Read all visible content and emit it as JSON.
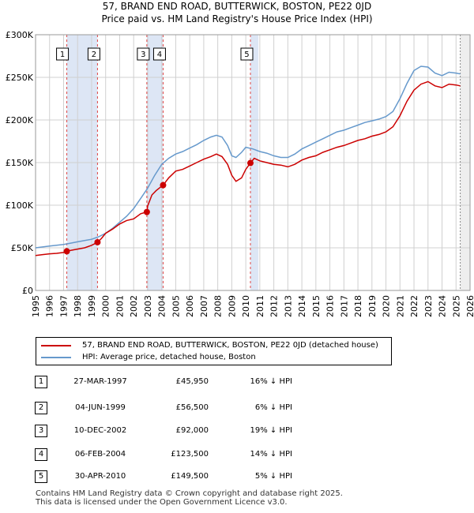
{
  "title_line1": "57, BRAND END ROAD, BUTTERWICK, BOSTON, PE22 0JD",
  "title_line2": "Price paid vs. HM Land Registry's House Price Index (HPI)",
  "colors": {
    "red": "#cc0000",
    "blue": "#6699cc",
    "shade": "#dde6f5",
    "vline": "#dd4444",
    "grid": "#d0d0d0"
  },
  "chart_data": {
    "type": "line",
    "title": "Price paid vs. HM Land Registry's House Price Index (HPI)",
    "xlabel": "",
    "ylabel": "",
    "xlim": [
      1995,
      2026
    ],
    "ylim": [
      0,
      300000
    ],
    "yticks": [
      0,
      50000,
      100000,
      150000,
      200000,
      250000,
      300000
    ],
    "ytick_labels": [
      "£0",
      "£50K",
      "£100K",
      "£150K",
      "£200K",
      "£250K",
      "£300K"
    ],
    "xtick_labels": [
      "1995",
      "1996",
      "1997",
      "1998",
      "1999",
      "2000",
      "2001",
      "2002",
      "2003",
      "2004",
      "2005",
      "2006",
      "2007",
      "2008",
      "2009",
      "2010",
      "2011",
      "2012",
      "2013",
      "2014",
      "2015",
      "2016",
      "2017",
      "2018",
      "2019",
      "2020",
      "2021",
      "2022",
      "2023",
      "2024",
      "2025",
      "2026"
    ],
    "grid": true,
    "shaded_spans": [
      [
        1997.23,
        1999.42
      ],
      [
        2002.94,
        2004.1
      ],
      [
        2010.33,
        2010.9
      ]
    ],
    "forecast_start": 2025.3,
    "series": [
      {
        "name": "57, BRAND END ROAD, BUTTERWICK, BOSTON, PE22 0JD (detached house)",
        "color": "#cc0000",
        "x": [
          1995.0,
          1995.5,
          1996.0,
          1996.5,
          1997.0,
          1997.23,
          1997.5,
          1998.0,
          1998.5,
          1999.0,
          1999.42,
          1999.7,
          2000.0,
          2000.5,
          2001.0,
          2001.5,
          2002.0,
          2002.5,
          2002.94,
          2003.0,
          2003.3,
          2003.6,
          2003.9,
          2004.1,
          2004.5,
          2005.0,
          2005.5,
          2006.0,
          2006.5,
          2007.0,
          2007.5,
          2007.9,
          2008.3,
          2008.7,
          2009.0,
          2009.3,
          2009.7,
          2010.0,
          2010.33,
          2010.6,
          2011.0,
          2011.5,
          2012.0,
          2012.5,
          2013.0,
          2013.5,
          2014.0,
          2014.5,
          2015.0,
          2015.5,
          2016.0,
          2016.5,
          2017.0,
          2017.5,
          2018.0,
          2018.5,
          2019.0,
          2019.5,
          2020.0,
          2020.5,
          2021.0,
          2021.5,
          2022.0,
          2022.5,
          2023.0,
          2023.5,
          2024.0,
          2024.5,
          2025.0,
          2025.3
        ],
        "values": [
          41000,
          42000,
          43000,
          43500,
          44500,
          45950,
          47000,
          48500,
          50000,
          53000,
          56500,
          61000,
          67000,
          72000,
          78000,
          82000,
          84000,
          90000,
          92000,
          99000,
          112000,
          117000,
          121000,
          123500,
          132000,
          140000,
          142000,
          146000,
          150000,
          154000,
          157000,
          160000,
          157000,
          148000,
          135000,
          128000,
          132000,
          142000,
          149500,
          155000,
          152000,
          150000,
          148000,
          147000,
          145000,
          148000,
          153000,
          156000,
          158000,
          162000,
          165000,
          168000,
          170000,
          173000,
          176000,
          178000,
          181000,
          183000,
          186000,
          192000,
          205000,
          222000,
          235000,
          242000,
          245000,
          240000,
          238000,
          242000,
          241000,
          240000
        ]
      },
      {
        "name": "HPI: Average price, detached house, Boston",
        "color": "#6699cc",
        "x": [
          1995.0,
          1995.5,
          1996.0,
          1996.5,
          1997.0,
          1997.5,
          1998.0,
          1998.5,
          1999.0,
          1999.5,
          2000.0,
          2000.5,
          2001.0,
          2001.5,
          2002.0,
          2002.5,
          2003.0,
          2003.5,
          2004.0,
          2004.5,
          2005.0,
          2005.5,
          2006.0,
          2006.5,
          2007.0,
          2007.5,
          2007.9,
          2008.3,
          2008.7,
          2009.0,
          2009.3,
          2009.7,
          2010.0,
          2010.5,
          2011.0,
          2011.5,
          2012.0,
          2012.5,
          2013.0,
          2013.5,
          2014.0,
          2014.5,
          2015.0,
          2015.5,
          2016.0,
          2016.5,
          2017.0,
          2017.5,
          2018.0,
          2018.5,
          2019.0,
          2019.5,
          2020.0,
          2020.5,
          2021.0,
          2021.5,
          2022.0,
          2022.5,
          2023.0,
          2023.5,
          2024.0,
          2024.5,
          2025.0,
          2025.3
        ],
        "values": [
          50000,
          51000,
          52000,
          53000,
          54000,
          55500,
          57000,
          58500,
          60000,
          63000,
          67000,
          73000,
          80000,
          87000,
          96000,
          108000,
          120000,
          135000,
          148000,
          155000,
          160000,
          163000,
          167000,
          171000,
          176000,
          180000,
          182000,
          180000,
          170000,
          158000,
          156000,
          162000,
          168000,
          166000,
          163000,
          161000,
          158000,
          156000,
          156000,
          160000,
          166000,
          170000,
          174000,
          178000,
          182000,
          186000,
          188000,
          191000,
          194000,
          197000,
          199000,
          201000,
          204000,
          210000,
          225000,
          243000,
          258000,
          263000,
          262000,
          255000,
          252000,
          256000,
          255000,
          254000
        ]
      }
    ],
    "sales": [
      {
        "n": "1",
        "x": 1997.23,
        "price": 45950
      },
      {
        "n": "2",
        "x": 1999.42,
        "price": 56500
      },
      {
        "n": "3",
        "x": 2002.94,
        "price": 92000
      },
      {
        "n": "4",
        "x": 2004.1,
        "price": 123500
      },
      {
        "n": "5",
        "x": 2010.33,
        "price": 149500
      }
    ]
  },
  "legend": {
    "red_label": "57, BRAND END ROAD, BUTTERWICK, BOSTON, PE22 0JD (detached house)",
    "blue_label": "HPI: Average price, detached house, Boston"
  },
  "table": [
    {
      "n": "1",
      "date": "27-MAR-1997",
      "price": "£45,950",
      "hpi": "16% ↓ HPI"
    },
    {
      "n": "2",
      "date": "04-JUN-1999",
      "price": "£56,500",
      "hpi": "6% ↓ HPI"
    },
    {
      "n": "3",
      "date": "10-DEC-2002",
      "price": "£92,000",
      "hpi": "19% ↓ HPI"
    },
    {
      "n": "4",
      "date": "06-FEB-2004",
      "price": "£123,500",
      "hpi": "14% ↓ HPI"
    },
    {
      "n": "5",
      "date": "30-APR-2010",
      "price": "£149,500",
      "hpi": "5% ↓ HPI"
    }
  ],
  "footer_line1": "Contains HM Land Registry data © Crown copyright and database right 2025.",
  "footer_line2": "This data is licensed under the Open Government Licence v3.0."
}
